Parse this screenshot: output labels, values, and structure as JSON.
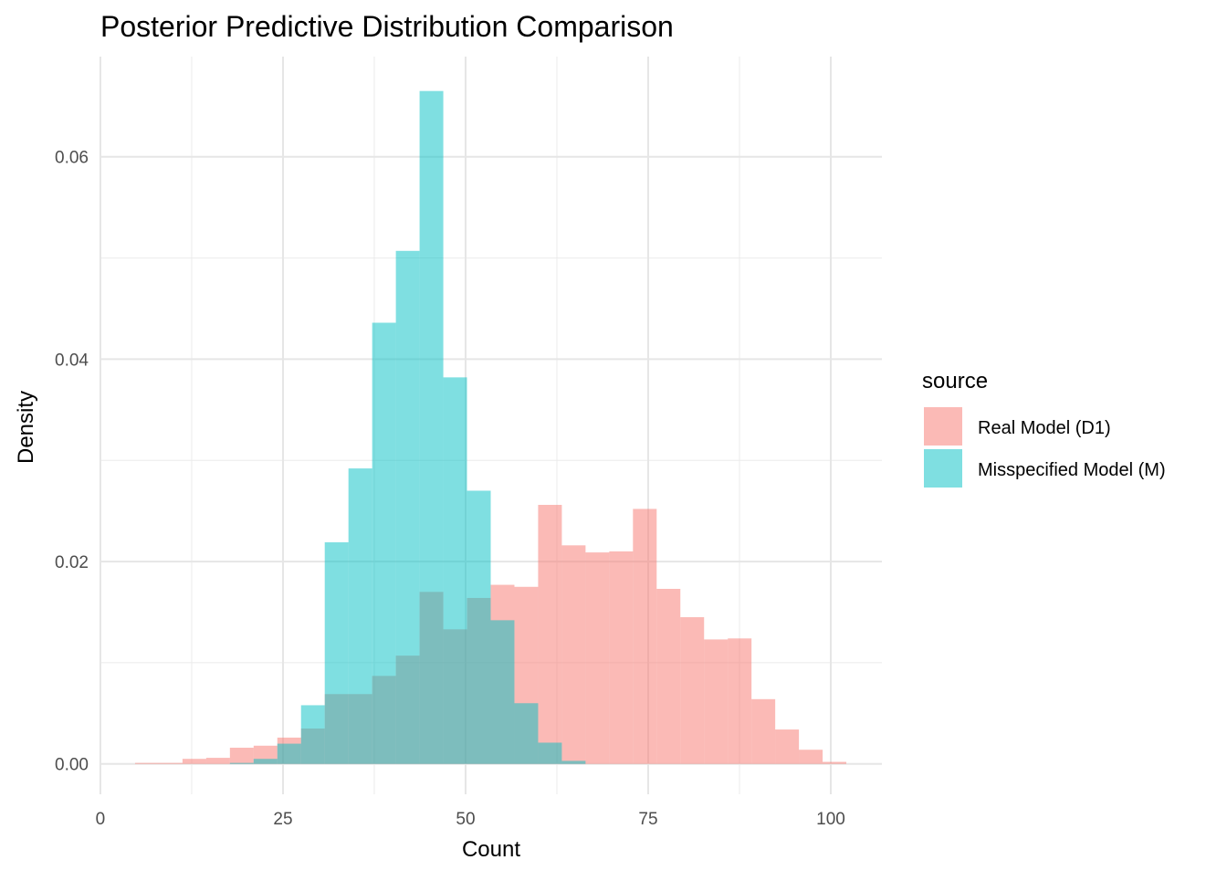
{
  "chart_data": {
    "type": "histogram",
    "title": "Posterior Predictive Distribution Comparison",
    "xlabel": "Count",
    "ylabel": "Density",
    "xlim": [
      -0.12,
      107.0
    ],
    "ylim": [
      -0.003,
      0.0699
    ],
    "x_ticks": [
      0,
      25,
      50,
      75,
      100
    ],
    "x_tick_labels": [
      "0",
      "25",
      "50",
      "75",
      "100"
    ],
    "y_ticks": [
      0,
      0.02,
      0.04,
      0.06
    ],
    "y_tick_labels": [
      "0.00",
      "0.02",
      "0.04",
      "0.06"
    ],
    "grid": true,
    "bin_start": 4.75,
    "bin_width": 3.246,
    "legend": {
      "title": "source",
      "placement": "right"
    },
    "series": [
      {
        "name": "Real Model (D1)",
        "color": "#F8766D",
        "alpha": 0.5,
        "values": [
          0.0001,
          0.0001,
          0.0005,
          0.0006,
          0.0016,
          0.0018,
          0.0026,
          0.0035,
          0.0069,
          0.0069,
          0.0087,
          0.0107,
          0.017,
          0.0133,
          0.0164,
          0.0177,
          0.0175,
          0.0256,
          0.0216,
          0.0209,
          0.021,
          0.0252,
          0.0173,
          0.0145,
          0.0123,
          0.0124,
          0.0064,
          0.0034,
          0.0014,
          0.0002
        ]
      },
      {
        "name": "Misspecified Model (M)",
        "color": "#00BFC4",
        "alpha": 0.5,
        "values": [
          0,
          0,
          0,
          0,
          0.0001,
          0.0005,
          0.002,
          0.0058,
          0.0219,
          0.0292,
          0.0436,
          0.0507,
          0.0665,
          0.0382,
          0.027,
          0.0142,
          0.006,
          0.0021,
          0.0003,
          0,
          0,
          0,
          0,
          0,
          0,
          0,
          0,
          0,
          0,
          0
        ]
      }
    ]
  }
}
